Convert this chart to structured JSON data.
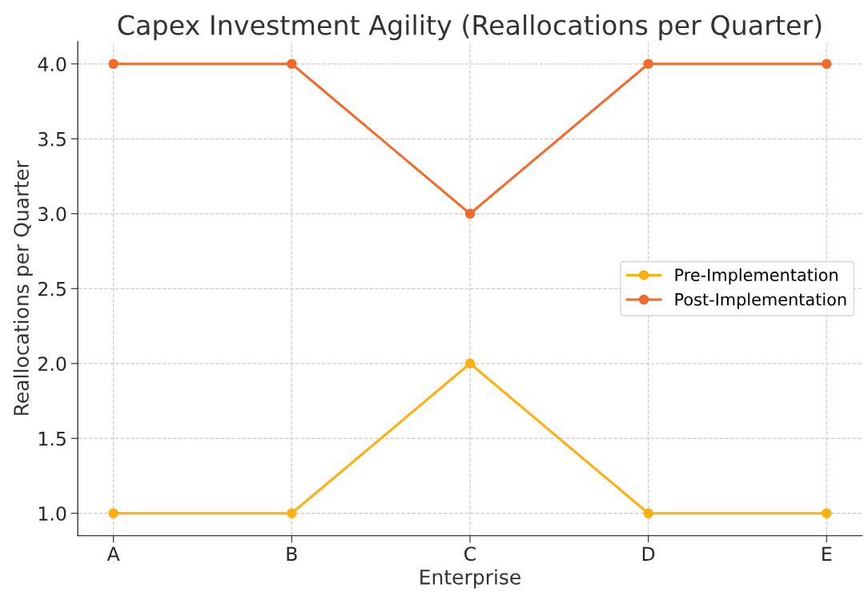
{
  "chart_data": {
    "type": "line",
    "title": "Capex Investment Agility (Reallocations per Quarter)",
    "xlabel": "Enterprise",
    "ylabel": "Reallocations per Quarter",
    "categories": [
      "A",
      "B",
      "C",
      "D",
      "E"
    ],
    "series": [
      {
        "name": "Pre-Implementation",
        "color": "#fdb010",
        "values": [
          1,
          1,
          2,
          1,
          1
        ]
      },
      {
        "name": "Post-Implementation",
        "color": "#f26b2a",
        "values": [
          4,
          4,
          3,
          4,
          4
        ]
      }
    ],
    "ylim": [
      0.85,
      4.15
    ],
    "yticks": [
      {
        "value": 1,
        "label": "1.0"
      },
      {
        "value": 1.5,
        "label": "1.5"
      },
      {
        "value": 2,
        "label": "2.0"
      },
      {
        "value": 2.5,
        "label": "2.5"
      },
      {
        "value": 3,
        "label": "3.0"
      },
      {
        "value": 3.5,
        "label": "3.5"
      },
      {
        "value": 4,
        "label": "4.0"
      }
    ],
    "grid": true,
    "legend": "right",
    "marker": "circle",
    "line_style": "solid"
  }
}
